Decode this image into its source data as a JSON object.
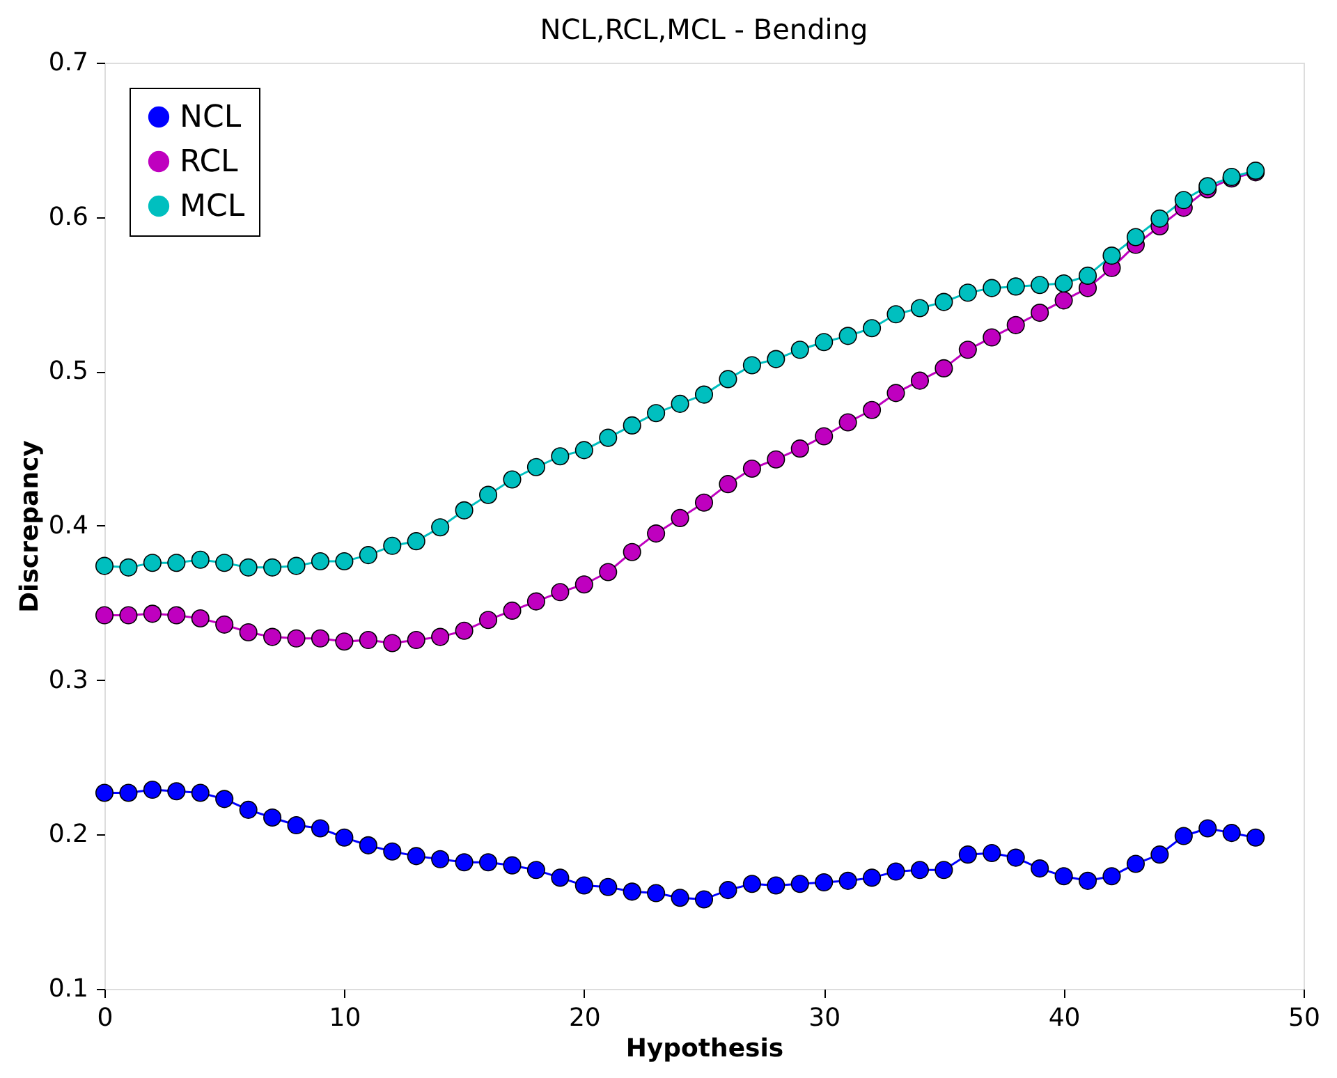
{
  "chart_data": {
    "type": "line",
    "title": "NCL,RCL,MCL - Bending",
    "xlabel": "Hypothesis",
    "ylabel": "Discrepancy",
    "x": [
      0,
      1,
      2,
      3,
      4,
      5,
      6,
      7,
      8,
      9,
      10,
      11,
      12,
      13,
      14,
      15,
      16,
      17,
      18,
      19,
      20,
      21,
      22,
      23,
      24,
      25,
      26,
      27,
      28,
      29,
      30,
      31,
      32,
      33,
      34,
      35,
      36,
      37,
      38,
      39,
      40,
      41,
      42,
      43,
      44,
      45,
      46,
      47,
      48
    ],
    "series": [
      {
        "name": "NCL",
        "color": "#0000ff",
        "values": [
          0.227,
          0.227,
          0.229,
          0.228,
          0.227,
          0.223,
          0.216,
          0.211,
          0.206,
          0.204,
          0.198,
          0.193,
          0.189,
          0.186,
          0.184,
          0.182,
          0.182,
          0.18,
          0.177,
          0.172,
          0.167,
          0.166,
          0.163,
          0.162,
          0.159,
          0.158,
          0.164,
          0.168,
          0.167,
          0.168,
          0.169,
          0.17,
          0.172,
          0.176,
          0.177,
          0.177,
          0.187,
          0.188,
          0.185,
          0.178,
          0.173,
          0.17,
          0.173,
          0.181,
          0.187,
          0.199,
          0.204,
          0.201,
          0.198
        ]
      },
      {
        "name": "RCL",
        "color": "#bf00bf",
        "values": [
          0.342,
          0.342,
          0.343,
          0.342,
          0.34,
          0.336,
          0.331,
          0.328,
          0.327,
          0.327,
          0.325,
          0.326,
          0.324,
          0.326,
          0.328,
          0.332,
          0.339,
          0.345,
          0.351,
          0.357,
          0.362,
          0.37,
          0.383,
          0.395,
          0.405,
          0.415,
          0.427,
          0.437,
          0.443,
          0.45,
          0.458,
          0.467,
          0.475,
          0.486,
          0.494,
          0.502,
          0.514,
          0.522,
          0.53,
          0.538,
          0.546,
          0.554,
          0.567,
          0.582,
          0.594,
          0.606,
          0.618,
          0.625,
          0.629
        ]
      },
      {
        "name": "MCL",
        "color": "#00bfbf",
        "values": [
          0.374,
          0.373,
          0.376,
          0.376,
          0.378,
          0.376,
          0.373,
          0.373,
          0.374,
          0.377,
          0.377,
          0.381,
          0.387,
          0.39,
          0.399,
          0.41,
          0.42,
          0.43,
          0.438,
          0.445,
          0.449,
          0.457,
          0.465,
          0.473,
          0.479,
          0.485,
          0.495,
          0.504,
          0.508,
          0.514,
          0.519,
          0.523,
          0.528,
          0.537,
          0.541,
          0.545,
          0.551,
          0.554,
          0.555,
          0.556,
          0.557,
          0.562,
          0.575,
          0.587,
          0.599,
          0.611,
          0.62,
          0.626,
          0.63
        ]
      }
    ],
    "xlim": [
      0,
      50
    ],
    "xticks": [
      0,
      10,
      20,
      30,
      40,
      50
    ],
    "ylim": [
      0.1,
      0.7
    ],
    "yticks": [
      0.1,
      0.2,
      0.3,
      0.4,
      0.5,
      0.6,
      0.7
    ],
    "legend": "top left",
    "marker": "circle",
    "line_style": "solid",
    "grid": false
  }
}
